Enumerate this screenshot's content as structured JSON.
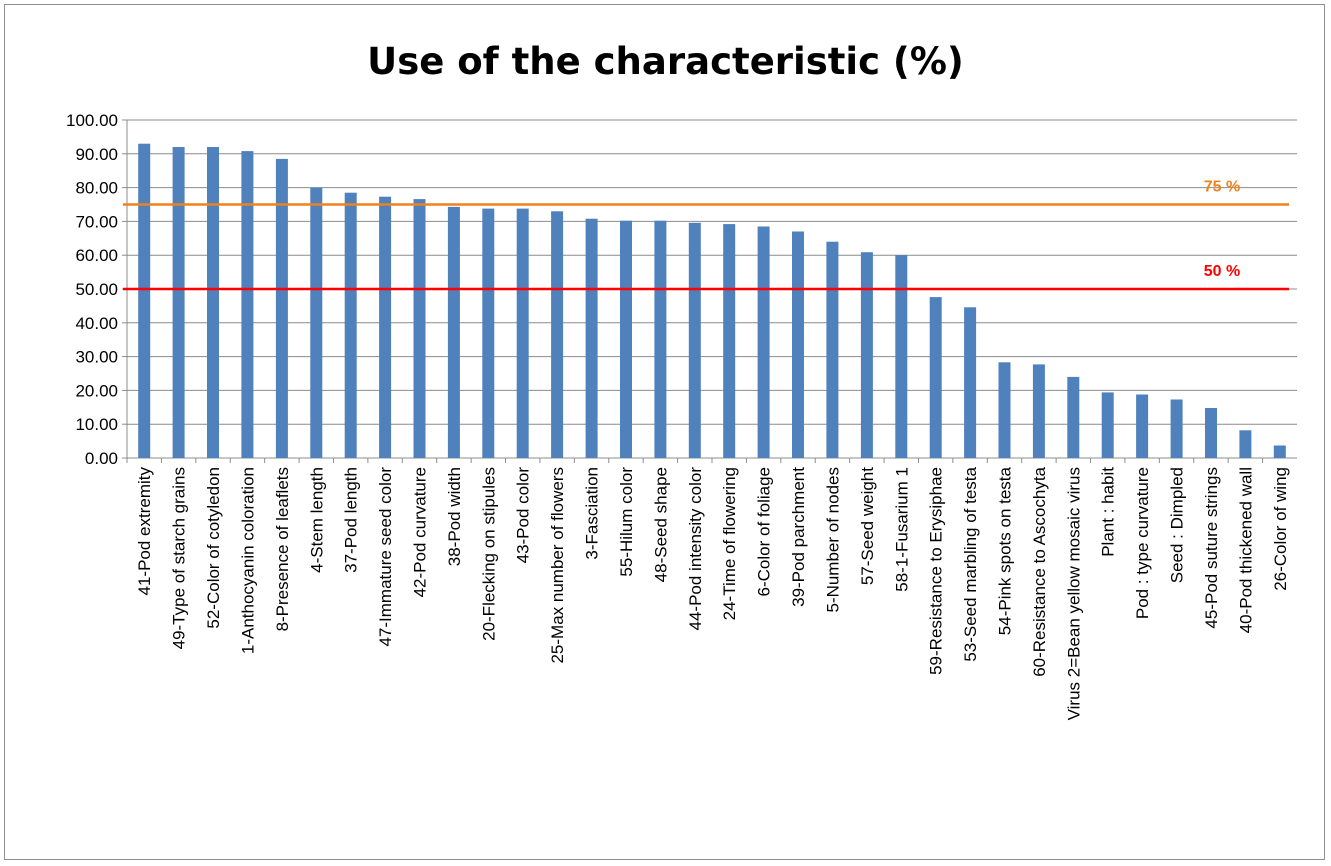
{
  "chart_data": {
    "type": "bar",
    "title": "Use of the characteristic (%)",
    "xlabel": "",
    "ylabel": "",
    "ylim": [
      0,
      100
    ],
    "yticks": [
      "0.00",
      "10.00",
      "20.00",
      "30.00",
      "40.00",
      "50.00",
      "60.00",
      "70.00",
      "80.00",
      "90.00",
      "100.00"
    ],
    "grid": true,
    "legend": "none",
    "bar_color": "#4f81bd",
    "categories": [
      "41-Pod extremity",
      "49-Type of starch grains",
      "52-Color of cotyledon",
      "1-Anthocyanin coloration",
      "8-Presence of leaflets",
      "4-Stem length",
      "37-Pod length",
      "47-Immature seed color",
      "42-Pod curvature",
      "38-Pod width",
      "20-Flecking on stipules",
      "43-Pod color",
      "25-Max number of flowers",
      "3-Fasciation",
      "55-Hilum color",
      "48-Seed shape",
      "44-Pod intensity color",
      "24-Time of flowering",
      "6-Color of foliage",
      "39-Pod parchment",
      "5-Number of nodes",
      "57-Seed weight",
      "58-1-Fusarium 1",
      "59-Resistance to Erysiphae",
      "53-Seed marbling of testa",
      "54-Pink spots on testa",
      "60-Resistance to Ascochyta",
      "Virus 2=Bean yellow mosaic virus",
      "Plant : habit",
      "Pod : type curvature",
      "Seed : Dimpled",
      "45-Pod suture strings",
      "40-Pod thickened wall",
      "26-Color of wing"
    ],
    "values": [
      93.0,
      92.0,
      92.0,
      90.8,
      88.5,
      80.0,
      78.5,
      77.3,
      76.6,
      74.3,
      73.8,
      73.8,
      73.0,
      70.8,
      70.2,
      70.2,
      69.6,
      69.2,
      68.5,
      67.0,
      64.0,
      60.9,
      60.0,
      47.6,
      44.6,
      28.3,
      27.7,
      24.0,
      19.4,
      18.8,
      17.3,
      14.8,
      8.2,
      3.7
    ],
    "annotations": [
      {
        "label": "75 %",
        "value": 75,
        "color": "#f0821e"
      },
      {
        "label": "50 %",
        "value": 50,
        "color": "#ff0000"
      }
    ]
  }
}
